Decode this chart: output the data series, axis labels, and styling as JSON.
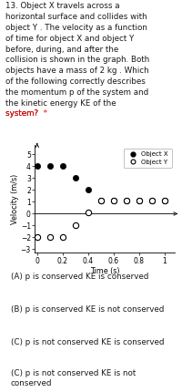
{
  "title_text": "13. Object X travels across a\nhorizontal surface and collides with\nobject Y . The velocity as a function\nof time for object X and object Y\nbefore, during, and after the\ncollision is shown in the graph. Both\nobjects have a mass of 2 kg . Which\nof the following correctly describes\nthe momentum p of the system and\nthe kinetic energy KE of the\nsystem? *",
  "title_star_color": "#ff0000",
  "obj_x_t": [
    0.0,
    0.1,
    0.2,
    0.3,
    0.4,
    0.5,
    0.6,
    0.7,
    0.8,
    0.9,
    1.0
  ],
  "obj_x_v": [
    4.0,
    4.0,
    4.0,
    3.0,
    2.0,
    1.1,
    1.1,
    1.1,
    1.1,
    1.1,
    1.1
  ],
  "obj_y_t": [
    0.0,
    0.1,
    0.2,
    0.3,
    0.4,
    0.5,
    0.6,
    0.7,
    0.8,
    0.9,
    1.0
  ],
  "obj_y_v": [
    -2.0,
    -2.0,
    -2.0,
    -1.0,
    0.1,
    1.1,
    1.1,
    1.1,
    1.1,
    1.1,
    1.1
  ],
  "xlabel": "Time (s)",
  "ylabel": "Velocity (m/s)",
  "xlim": [
    -0.02,
    1.08
  ],
  "ylim": [
    -3.3,
    5.8
  ],
  "yticks": [
    -3,
    -2,
    -1,
    0,
    1,
    2,
    3,
    4,
    5
  ],
  "xticks": [
    0,
    0.2,
    0.4,
    0.6,
    0.8,
    1.0
  ],
  "choices": [
    "(A) p is conserved KE is conserved",
    "(B) p is conserved KE is not conserved",
    "(C) p is not conserved KE is conserved",
    "(C) p is not conserved KE is not\nconserved"
  ],
  "legend_x_label": "Object X",
  "legend_y_label": "Object Y",
  "bg_color": "#ffffff",
  "marker_color_x": "#000000",
  "marker_color_y": "#000000",
  "marker_size": 4.5
}
